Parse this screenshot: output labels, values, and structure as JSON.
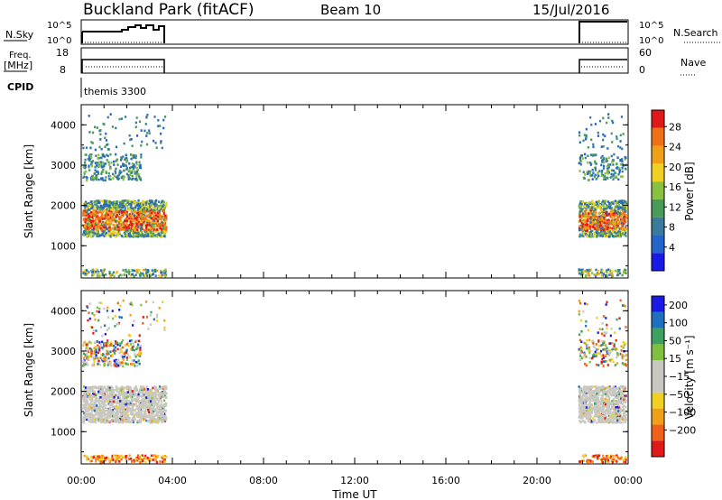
{
  "header": {
    "title": "Buckland Park (fitACF)",
    "beam": "Beam 10",
    "date": "15/Jul/2016"
  },
  "top_panels": {
    "nsky_label": "N.Sky",
    "nsky_ticks": [
      "10^5",
      "10^0"
    ],
    "nsearch_label": "N.Search",
    "freq_label_1": "Freq.",
    "freq_label_2": "[MHz]",
    "freq_ticks": [
      "18",
      "8"
    ],
    "nave_label": "Nave",
    "nave_ticks": [
      "60",
      "0"
    ],
    "cpid_label": "CPID",
    "cpid_value": "themis 3300"
  },
  "colors": {
    "power": [
      "#1a1ae6",
      "#2266cc",
      "#3a7a9a",
      "#4a9a5a",
      "#88c040",
      "#f0d020",
      "#f0a018",
      "#f07018",
      "#e01818"
    ],
    "velocity": [
      "#e01818",
      "#f06018",
      "#f0a018",
      "#f0d020",
      "#c8c8c0",
      "#c8c8c0",
      "#80c040",
      "#40a060",
      "#2070c0",
      "#1a1ae6"
    ]
  },
  "chart_data": [
    {
      "type": "heatmap",
      "name": "power-panel",
      "xlabel": "",
      "ylabel": "Slant Range [km]",
      "ylim": [
        200,
        4500
      ],
      "yticks": [
        1000,
        2000,
        3000,
        4000
      ],
      "colorbar_label": "Power [dB]",
      "colorbar_ticks": [
        "28",
        "24",
        "20",
        "16",
        "12",
        "8",
        "4"
      ],
      "data_intervals_hours": [
        [
          0,
          3.7
        ],
        [
          21.8,
          24
        ]
      ]
    },
    {
      "type": "heatmap",
      "name": "velocity-panel",
      "xlabel": "Time UT",
      "ylabel": "Slant Range [km]",
      "ylim": [
        200,
        4500
      ],
      "yticks": [
        1000,
        2000,
        3000,
        4000
      ],
      "xticks": [
        "00:00",
        "04:00",
        "08:00",
        "12:00",
        "16:00",
        "20:00",
        "00:00"
      ],
      "colorbar_label": "Velocity [m s⁻¹]",
      "colorbar_ticks": [
        "200",
        "100",
        "50",
        "15",
        "−15",
        "−50",
        "−100",
        "−200"
      ],
      "data_intervals_hours": [
        [
          0,
          3.7
        ],
        [
          21.8,
          24
        ]
      ]
    }
  ]
}
